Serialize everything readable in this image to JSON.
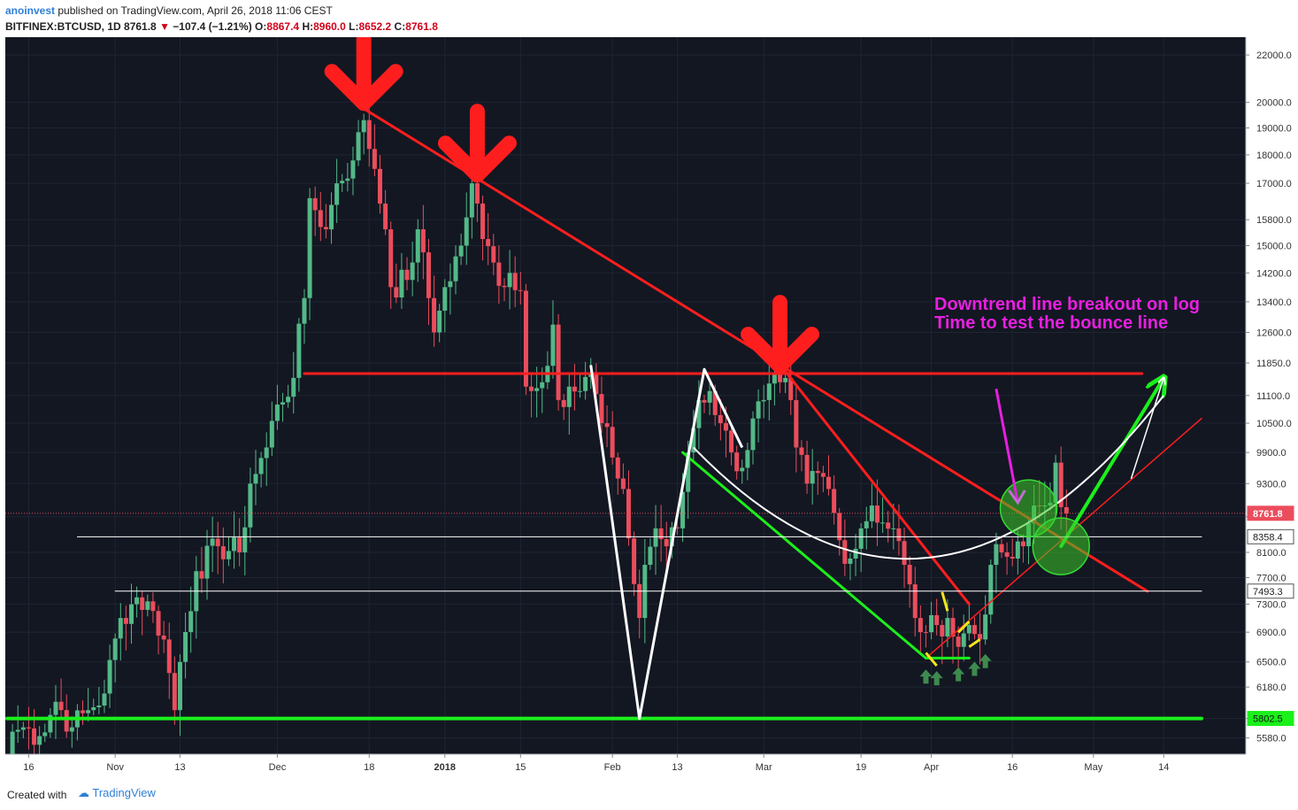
{
  "header": {
    "author": "anoinvest",
    "published": "published on TradingView.com, April 26, 2018 11:06 CEST",
    "symbol": "BITFINEX:BTCUSD, 1D",
    "last": "8761.8",
    "change": "−107.4 (−1.21%)",
    "open_label": "O:",
    "open": "8867.4",
    "high_label": "H:",
    "high": "8960.0",
    "low_label": "L:",
    "low": "8652.2",
    "close_label": "C:",
    "close": "8761.8"
  },
  "footer": {
    "created_with": "Created with",
    "brand": "TradingView"
  },
  "colors": {
    "background": "#131722",
    "up": "#53b987",
    "down": "#eb4d5c",
    "annotation_red": "#ff1e1e",
    "annotation_green": "#1bf01b",
    "annotation_magenta": "#e81fe0"
  },
  "chart_data": {
    "type": "candlestick",
    "scale": "log",
    "ylim": [
      5400,
      22800
    ],
    "xlim": [
      "2017-10-12",
      "2018-05-21"
    ],
    "y_ticks": [
      22000,
      20000,
      19000,
      18000,
      17000,
      15800,
      15000,
      14200,
      13400,
      12600,
      11850,
      11100,
      10500,
      9900,
      9300,
      8700,
      8100,
      7700,
      7300,
      6900,
      6500,
      6180,
      5802.5,
      5580
    ],
    "y_tick_labels": [
      "22000.0",
      "20000.0",
      "19000.0",
      "18000.0",
      "17000.0",
      "15800.0",
      "15000.0",
      "14200.0",
      "13400.0",
      "12600.0",
      "11850.0",
      "11100.0",
      "10500.0",
      "9900.0",
      "9300.0",
      "8700.0",
      "8100.0",
      "7700.0",
      "7300.0",
      "6900.0",
      "6500.0",
      "6180.0",
      "5802.5",
      "5580.0"
    ],
    "x_ticks": [
      {
        "date": "2017-10-16",
        "label": "16",
        "bold": false
      },
      {
        "date": "2017-11-01",
        "label": "Nov",
        "bold": false
      },
      {
        "date": "2017-11-13",
        "label": "13",
        "bold": false
      },
      {
        "date": "2017-12-01",
        "label": "Dec",
        "bold": false
      },
      {
        "date": "2017-12-18",
        "label": "18",
        "bold": false
      },
      {
        "date": "2018-01-01",
        "label": "2018",
        "bold": true
      },
      {
        "date": "2018-01-15",
        "label": "15",
        "bold": false
      },
      {
        "date": "2018-02-01",
        "label": "Feb",
        "bold": false
      },
      {
        "date": "2018-02-13",
        "label": "13",
        "bold": false
      },
      {
        "date": "2018-03-01",
        "label": "Mar",
        "bold": false
      },
      {
        "date": "2018-03-19",
        "label": "19",
        "bold": false
      },
      {
        "date": "2018-04-01",
        "label": "Apr",
        "bold": false
      },
      {
        "date": "2018-04-16",
        "label": "16",
        "bold": false
      },
      {
        "date": "2018-05-01",
        "label": "May",
        "bold": false
      },
      {
        "date": "2018-05-14",
        "label": "14",
        "bold": false
      }
    ],
    "price_labels": [
      {
        "value": 8761.8,
        "label": "8761.8",
        "style": "last"
      },
      {
        "value": 8358.4,
        "label": "8358.4",
        "style": "white"
      },
      {
        "value": 7493.3,
        "label": "7493.3",
        "style": "white"
      },
      {
        "value": 5802.5,
        "label": "5802.5",
        "style": "green"
      }
    ],
    "candle_anchors": [
      [
        "2017-10-12",
        5400
      ],
      [
        "2017-10-13",
        5650
      ],
      [
        "2017-10-15",
        5700
      ],
      [
        "2017-10-18",
        5600
      ],
      [
        "2017-10-21",
        6000
      ],
      [
        "2017-10-24",
        5700
      ],
      [
        "2017-10-27",
        5900
      ],
      [
        "2017-10-30",
        6100
      ],
      [
        "2017-11-02",
        7100
      ],
      [
        "2017-11-05",
        7400
      ],
      [
        "2017-11-08",
        7200
      ],
      [
        "2017-11-10",
        6800
      ],
      [
        "2017-11-12",
        5900
      ],
      [
        "2017-11-13",
        6500
      ],
      [
        "2017-11-16",
        7800
      ],
      [
        "2017-11-20",
        8200
      ],
      [
        "2017-11-24",
        8100
      ],
      [
        "2017-11-26",
        9300
      ],
      [
        "2017-11-29",
        10000
      ],
      [
        "2017-12-01",
        10900
      ],
      [
        "2017-12-04",
        11500
      ],
      [
        "2017-12-06",
        13500
      ],
      [
        "2017-12-07",
        16500
      ],
      [
        "2017-12-10",
        15500
      ],
      [
        "2017-12-12",
        17000
      ],
      [
        "2017-12-15",
        17800
      ],
      [
        "2017-12-17",
        19300
      ],
      [
        "2017-12-19",
        17500
      ],
      [
        "2017-12-21",
        15500
      ],
      [
        "2017-12-22",
        13800
      ],
      [
        "2017-12-25",
        14000
      ],
      [
        "2017-12-27",
        15500
      ],
      [
        "2017-12-29",
        13500
      ],
      [
        "2017-12-30",
        12600
      ],
      [
        "2018-01-01",
        13800
      ],
      [
        "2018-01-04",
        15000
      ],
      [
        "2018-01-06",
        17000
      ],
      [
        "2018-01-08",
        15200
      ],
      [
        "2018-01-10",
        14500
      ],
      [
        "2018-01-12",
        13800
      ],
      [
        "2018-01-13",
        14200
      ],
      [
        "2018-01-15",
        13700
      ],
      [
        "2018-01-16",
        11300
      ],
      [
        "2018-01-17",
        11200
      ],
      [
        "2018-01-19",
        11400
      ],
      [
        "2018-01-21",
        12800
      ],
      [
        "2018-01-22",
        11000
      ],
      [
        "2018-01-24",
        11300
      ],
      [
        "2018-01-26",
        11200
      ],
      [
        "2018-01-28",
        11600
      ],
      [
        "2018-01-30",
        10500
      ],
      [
        "2018-02-01",
        9800
      ],
      [
        "2018-02-03",
        9200
      ],
      [
        "2018-02-05",
        7600
      ],
      [
        "2018-02-06",
        7100
      ],
      [
        "2018-02-07",
        7900
      ],
      [
        "2018-02-09",
        8500
      ],
      [
        "2018-02-11",
        8200
      ],
      [
        "2018-02-13",
        8500
      ],
      [
        "2018-02-15",
        9900
      ],
      [
        "2018-02-17",
        11000
      ],
      [
        "2018-02-19",
        11200
      ],
      [
        "2018-02-21",
        10500
      ],
      [
        "2018-02-23",
        9900
      ],
      [
        "2018-02-25",
        9600
      ],
      [
        "2018-02-27",
        10600
      ],
      [
        "2018-03-01",
        11000
      ],
      [
        "2018-03-04",
        11400
      ],
      [
        "2018-03-05",
        11500
      ],
      [
        "2018-03-07",
        10000
      ],
      [
        "2018-03-09",
        9300
      ],
      [
        "2018-03-11",
        9500
      ],
      [
        "2018-03-13",
        9200
      ],
      [
        "2018-03-15",
        8300
      ],
      [
        "2018-03-17",
        8000
      ],
      [
        "2018-03-19",
        8500
      ],
      [
        "2018-03-21",
        8900
      ],
      [
        "2018-03-23",
        8600
      ],
      [
        "2018-03-25",
        8500
      ],
      [
        "2018-03-27",
        7900
      ],
      [
        "2018-03-29",
        7100
      ],
      [
        "2018-03-31",
        6900
      ],
      [
        "2018-04-02",
        7000
      ],
      [
        "2018-04-04",
        7100
      ],
      [
        "2018-04-06",
        6700
      ],
      [
        "2018-04-08",
        7000
      ],
      [
        "2018-04-10",
        6800
      ],
      [
        "2018-04-12",
        7900
      ],
      [
        "2018-04-14",
        8100
      ],
      [
        "2018-04-16",
        8000
      ],
      [
        "2018-04-18",
        8200
      ],
      [
        "2018-04-20",
        8900
      ],
      [
        "2018-04-22",
        8900
      ],
      [
        "2018-04-23",
        8950
      ],
      [
        "2018-04-24",
        9700
      ],
      [
        "2018-04-25",
        8870
      ],
      [
        "2018-04-26",
        8761.8
      ]
    ],
    "drawings": [
      {
        "kind": "line",
        "color": "red",
        "width": 3,
        "from": [
          "2017-12-17",
          19750
        ],
        "to": [
          "2018-05-11",
          7490
        ]
      },
      {
        "kind": "line",
        "color": "red",
        "width": 3,
        "from": [
          "2017-12-06",
          11600
        ],
        "to": [
          "2018-05-10",
          11600
        ]
      },
      {
        "kind": "line",
        "color": "red",
        "width": 3,
        "from": [
          "2018-03-05",
          11650
        ],
        "to": [
          "2018-04-08",
          7300
        ]
      },
      {
        "kind": "line",
        "color": "red",
        "width": 1.5,
        "from": [
          "2018-03-31",
          6550
        ],
        "to": [
          "2018-05-21",
          10600
        ]
      },
      {
        "kind": "line",
        "color": "green",
        "width": 4,
        "from": [
          "2017-10-12",
          5802.5
        ],
        "to": [
          "2018-05-21",
          5802.5
        ]
      },
      {
        "kind": "line",
        "color": "green",
        "width": 3,
        "from": [
          "2018-02-14",
          9900
        ],
        "to": [
          "2018-03-31",
          6550
        ]
      },
      {
        "kind": "line",
        "color": "green",
        "width": 3,
        "from": [
          "2018-03-31",
          6550
        ],
        "to": [
          "2018-04-08",
          6550
        ]
      },
      {
        "kind": "arrow",
        "color": "green",
        "width": 4,
        "from": [
          "2018-04-25",
          8200
        ],
        "to": [
          "2018-05-14",
          11500
        ]
      },
      {
        "kind": "line",
        "color": "white",
        "width": 1,
        "from": [
          "2017-10-25",
          8358.4
        ],
        "to": [
          "2018-05-21",
          8358.4
        ]
      },
      {
        "kind": "line",
        "color": "white",
        "width": 1,
        "from": [
          "2017-11-01",
          7493.3
        ],
        "to": [
          "2018-05-21",
          7493.3
        ]
      },
      {
        "kind": "polyline",
        "color": "white",
        "width": 3,
        "points": [
          [
            "2018-01-28",
            11800
          ],
          [
            "2018-02-06",
            5802.5
          ],
          [
            "2018-02-18",
            11700
          ],
          [
            "2018-02-25",
            10000
          ]
        ]
      },
      {
        "kind": "curve",
        "color": "white",
        "width": 2,
        "from": [
          "2018-02-16",
          10000
        ],
        "via": [
          "2018-04-01",
          6100
        ],
        "to": [
          "2018-05-14",
          11100
        ]
      },
      {
        "kind": "arrow",
        "color": "white",
        "width": 1.5,
        "from": [
          "2018-05-08",
          9400
        ],
        "to": [
          "2018-05-14",
          11500
        ]
      }
    ],
    "markers": {
      "down_arrows": [
        [
          "2017-12-17",
          19750
        ],
        [
          "2018-01-07",
          17100
        ],
        [
          "2018-03-04",
          11650
        ]
      ],
      "up_arrows": [
        [
          "2018-03-31",
          6300
        ],
        [
          "2018-04-02",
          6280
        ],
        [
          "2018-04-06",
          6330
        ],
        [
          "2018-04-09",
          6400
        ],
        [
          "2018-04-11",
          6500
        ]
      ],
      "circles": [
        [
          "2018-04-19",
          8850
        ],
        [
          "2018-04-25",
          8200
        ]
      ],
      "yellow_segments": [
        [
          [
            "2018-03-31",
            6620
          ],
          [
            "2018-04-02",
            6450
          ]
        ],
        [
          [
            "2018-04-03",
            7480
          ],
          [
            "2018-04-04",
            7200
          ]
        ],
        [
          [
            "2018-04-06",
            6900
          ],
          [
            "2018-04-08",
            7050
          ]
        ],
        [
          [
            "2018-04-08",
            6700
          ],
          [
            "2018-04-10",
            6800
          ]
        ]
      ]
    },
    "annotation": {
      "line1": "Downtrend line breakout on log",
      "line2": "Time to test the bounce line",
      "pointer_from": [
        "2018-04-13",
        11250
      ],
      "pointer_to": [
        "2018-04-17",
        8950
      ]
    }
  }
}
